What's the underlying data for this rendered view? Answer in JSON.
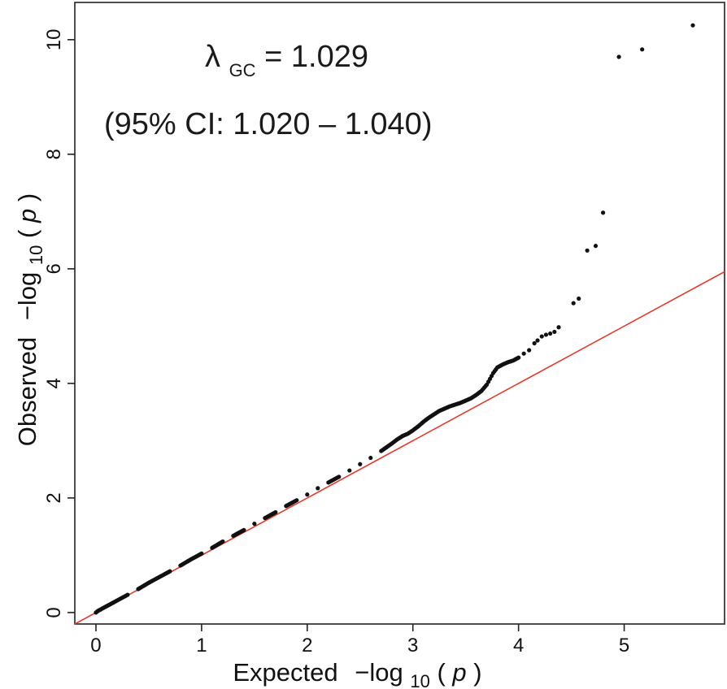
{
  "chart_data": {
    "type": "scatter",
    "title": "",
    "xlabel": {
      "main": "Expected",
      "prefix": "−log",
      "sub": "10",
      "open": "(",
      "var": "p",
      "close": ")"
    },
    "ylabel": {
      "main": "Observed",
      "prefix": "−log",
      "sub": "10",
      "open": "(",
      "var": "p",
      "close": ")"
    },
    "xlim": [
      -0.2,
      5.95
    ],
    "ylim": [
      -0.2,
      10.65
    ],
    "x_ticks": [
      0,
      1,
      2,
      3,
      4,
      5
    ],
    "x_tick_labels": [
      "0",
      "1",
      "2",
      "3",
      "4",
      "5"
    ],
    "y_ticks": [
      0,
      2,
      4,
      6,
      8,
      10
    ],
    "y_tick_labels": [
      "0",
      "2",
      "4",
      "6",
      "8",
      "10"
    ],
    "grid": false,
    "reference_line": {
      "slope": 1,
      "intercept": 0,
      "color": "#e8392a"
    },
    "point_color": "#111111",
    "annotations": {
      "lambda_symbol": "λ",
      "lambda_sub": "GC",
      "lambda_value": " = 1.029",
      "ci": "(95% CI: 1.020 – 1.040)"
    },
    "series": [
      {
        "points": [
          [
            0.0,
            0.0
          ],
          [
            0.02,
            0.03
          ],
          [
            0.05,
            0.06
          ],
          [
            0.1,
            0.11
          ],
          [
            0.2,
            0.21
          ],
          [
            0.3,
            0.31
          ],
          [
            0.4,
            0.41
          ],
          [
            0.5,
            0.52
          ],
          [
            0.6,
            0.62
          ],
          [
            0.7,
            0.72
          ],
          [
            0.8,
            0.82
          ],
          [
            0.9,
            0.93
          ],
          [
            1.0,
            1.03
          ],
          [
            1.1,
            1.13
          ],
          [
            1.2,
            1.24
          ],
          [
            1.3,
            1.34
          ],
          [
            1.4,
            1.44
          ],
          [
            1.5,
            1.55
          ],
          [
            1.6,
            1.65
          ],
          [
            1.7,
            1.75
          ],
          [
            1.8,
            1.86
          ],
          [
            1.9,
            1.96
          ],
          [
            2.0,
            2.06
          ],
          [
            2.1,
            2.17
          ],
          [
            2.2,
            2.27
          ],
          [
            2.3,
            2.37
          ],
          [
            2.4,
            2.48
          ],
          [
            2.5,
            2.59
          ],
          [
            2.6,
            2.7
          ],
          [
            2.7,
            2.82
          ],
          [
            2.8,
            2.95
          ],
          [
            2.85,
            3.02
          ],
          [
            2.9,
            3.08
          ],
          [
            2.95,
            3.12
          ],
          [
            3.0,
            3.18
          ],
          [
            3.05,
            3.25
          ],
          [
            3.1,
            3.33
          ],
          [
            3.15,
            3.4
          ],
          [
            3.2,
            3.46
          ],
          [
            3.25,
            3.52
          ],
          [
            3.3,
            3.56
          ],
          [
            3.35,
            3.6
          ],
          [
            3.4,
            3.63
          ],
          [
            3.45,
            3.66
          ],
          [
            3.5,
            3.7
          ],
          [
            3.55,
            3.74
          ],
          [
            3.6,
            3.8
          ],
          [
            3.65,
            3.87
          ],
          [
            3.7,
            3.98
          ],
          [
            3.73,
            4.08
          ],
          [
            3.76,
            4.18
          ],
          [
            3.8,
            4.28
          ],
          [
            3.85,
            4.33
          ],
          [
            3.9,
            4.37
          ],
          [
            3.95,
            4.4
          ],
          [
            4.0,
            4.45
          ],
          [
            4.05,
            4.52
          ],
          [
            4.1,
            4.58
          ],
          [
            4.15,
            4.7
          ],
          [
            4.18,
            4.75
          ],
          [
            4.22,
            4.82
          ],
          [
            4.26,
            4.85
          ],
          [
            4.3,
            4.87
          ],
          [
            4.34,
            4.9
          ],
          [
            4.38,
            4.98
          ],
          [
            4.52,
            5.4
          ],
          [
            4.57,
            5.48
          ],
          [
            4.65,
            6.32
          ],
          [
            4.73,
            6.4
          ],
          [
            4.8,
            6.98
          ],
          [
            4.95,
            9.7
          ],
          [
            5.17,
            9.83
          ],
          [
            5.65,
            10.25
          ]
        ]
      }
    ]
  }
}
